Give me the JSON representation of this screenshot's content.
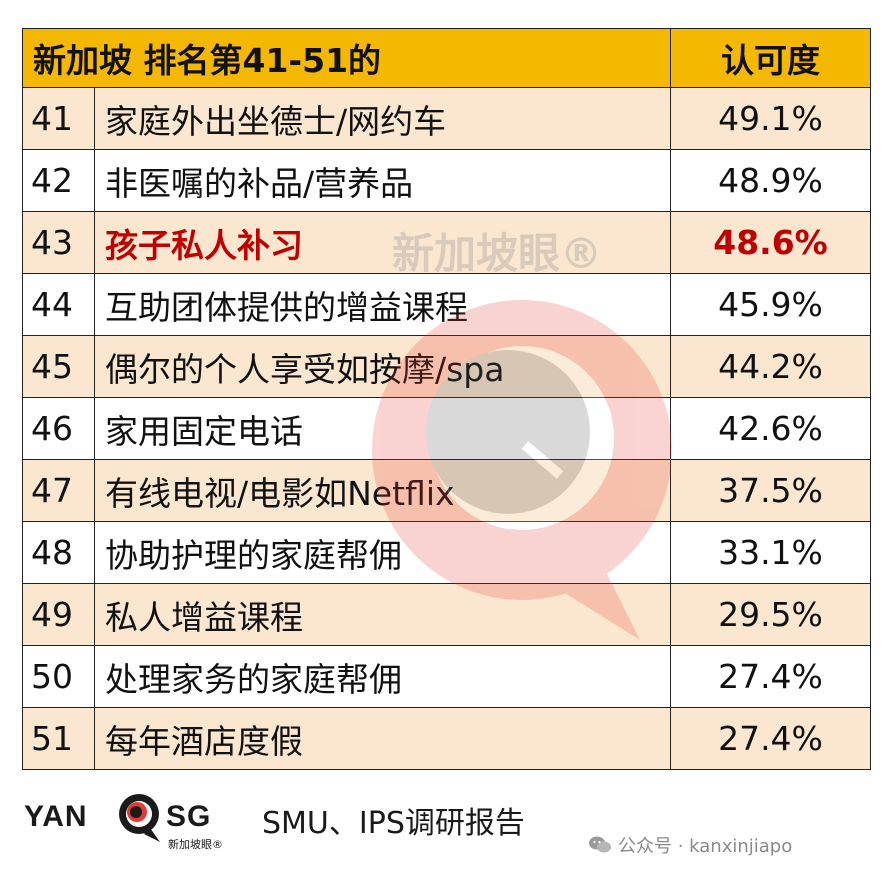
{
  "table": {
    "header": {
      "title": "新加坡 排名第41-51的",
      "score_header": "认可度"
    },
    "rows": [
      {
        "rank": "41",
        "item": "家庭外出坐德士/网约车",
        "score": "49.1%"
      },
      {
        "rank": "42",
        "item": "非医嘱的补品/营养品",
        "score": "48.9%"
      },
      {
        "rank": "43",
        "item": "孩子私人补习",
        "score": "48.6%"
      },
      {
        "rank": "44",
        "item": "互助团体提供的增益课程",
        "score": "45.9%"
      },
      {
        "rank": "45",
        "item": "偶尔的个人享受如按摩/spa",
        "score": "44.2%"
      },
      {
        "rank": "46",
        "item": "家用固定电话",
        "score": "42.6%"
      },
      {
        "rank": "47",
        "item": "有线电视/电影如Netflix",
        "score": "37.5%"
      },
      {
        "rank": "48",
        "item": "协助护理的家庭帮佣",
        "score": "33.1%"
      },
      {
        "rank": "49",
        "item": "私人增益课程",
        "score": "29.5%"
      },
      {
        "rank": "50",
        "item": "处理家务的家庭帮佣",
        "score": "27.4%"
      },
      {
        "rank": "51",
        "item": "每年酒店度假",
        "score": "27.4%"
      }
    ],
    "highlighted_rank": "43"
  },
  "watermark": {
    "text": "新加坡眼®"
  },
  "footer": {
    "logo": {
      "left": "YAN",
      "right": "SG",
      "sub": "新加坡眼®"
    },
    "source": "SMU、IPS调研报告",
    "wechat": "公众号 · kanxinjiapo"
  },
  "colors": {
    "header_bg": "#f5b800",
    "row_alt_bg": "#fbe7cf",
    "highlight_text": "#c00000",
    "watermark": "#e53935"
  }
}
